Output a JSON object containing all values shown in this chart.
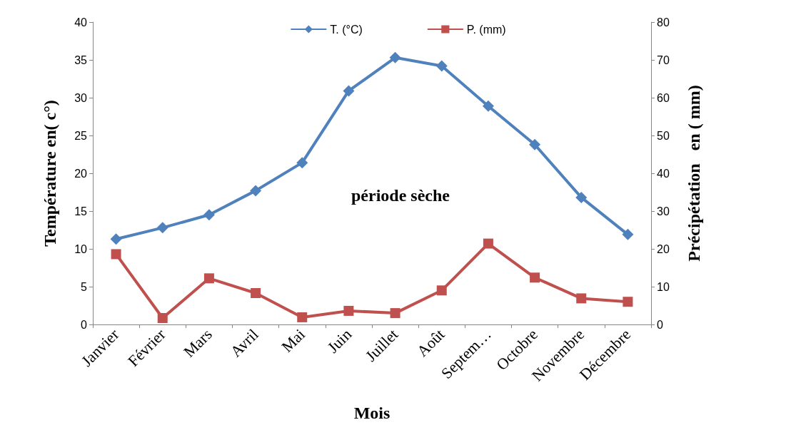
{
  "chart_data": {
    "type": "line",
    "categories": [
      "Janvier",
      "Février",
      "Mars",
      "Avril",
      "Mai",
      "Juin",
      "Juillet",
      "Août",
      "Septem…",
      "Octobre",
      "Novembre",
      "Décembre"
    ],
    "series": [
      {
        "name": "T. (°C)",
        "color": "#4f81bd",
        "marker": "diamond",
        "values": [
          11.3,
          12.8,
          14.5,
          17.7,
          21.4,
          30.9,
          35.3,
          34.2,
          28.9,
          23.8,
          16.8,
          11.9
        ]
      },
      {
        "name": "P. (mm)",
        "color": "#c0504d",
        "marker": "square",
        "axis": "y2",
        "values": [
          18.6,
          1.7,
          12.2,
          8.3,
          1.9,
          3.6,
          3.0,
          9.0,
          21.4,
          12.4,
          6.9,
          6.0
        ]
      }
    ],
    "xlabel": "Mois",
    "ylabel": "Température en( c°)",
    "y2label": "Précipétation   en ( mm)",
    "ylim": [
      0,
      40
    ],
    "yticks": [
      0,
      5,
      10,
      15,
      20,
      25,
      30,
      35,
      40
    ],
    "y2lim": [
      0,
      80
    ],
    "y2ticks": [
      0,
      10,
      20,
      30,
      40,
      50,
      60,
      70,
      80
    ],
    "annotations": [
      "période sèche"
    ],
    "legend": "top",
    "grid": false
  }
}
